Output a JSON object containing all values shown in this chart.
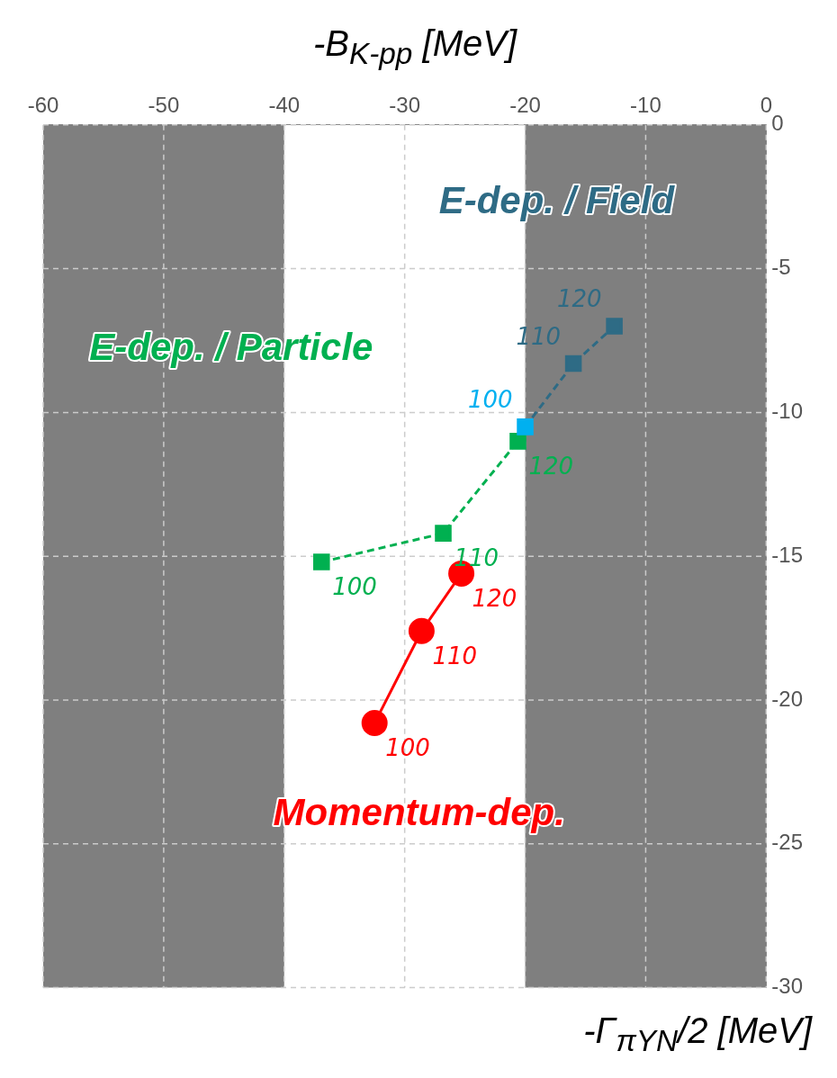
{
  "chart_data": {
    "type": "line",
    "xlabel": "-Γ$_{πYN}$/2 [MeV]",
    "ylabel": "-B$_{K-pp}$ [MeV]",
    "xlim": [
      -60,
      0
    ],
    "xticks": [
      -60,
      -50,
      -40,
      -30,
      -20,
      -10,
      0
    ],
    "ylim": [
      -30,
      0
    ],
    "yticks": [
      -30,
      -25,
      -20,
      -15,
      -10,
      -5,
      0
    ],
    "grid": true,
    "legend": false,
    "bands": [
      {
        "axis": "x",
        "from": -60,
        "to": -40,
        "color": "#7f7f7f"
      },
      {
        "axis": "x",
        "from": -20,
        "to": 0,
        "color": "#7f7f7f"
      }
    ],
    "series": [
      {
        "name": "E-dep. / Field",
        "color": "#2e6b85",
        "colors": [
          "#00b0f0",
          "#2e6b85",
          "#2e6b85"
        ],
        "marker": "square",
        "line_style": "dashed",
        "x": [
          -20,
          -16,
          -12.6
        ],
        "values": [
          -10.5,
          -8.3,
          -7.0
        ]
      },
      {
        "name": "E-dep. / Particle",
        "color": "#00b050",
        "colors": [
          "#00b050",
          "#00b050",
          "#00b050"
        ],
        "marker": "square",
        "line_style": "dashed",
        "x": [
          -36.9,
          -26.8,
          -20.6
        ],
        "values": [
          -15.2,
          -14.2,
          -11.0
        ]
      },
      {
        "name": "Momentum-dep.",
        "color": "#ff0000",
        "colors": [
          "#ff0000",
          "#ff0000",
          "#ff0000"
        ],
        "marker": "circle",
        "line_style": "solid",
        "x": [
          -32.5,
          -28.6,
          -25.3
        ],
        "values": [
          -20.8,
          -17.6,
          -15.6
        ]
      }
    ],
    "annotations": [
      {
        "text": "100",
        "x": -20,
        "y": -10.5
      },
      {
        "text": "110",
        "x": -16,
        "y": -8.3
      },
      {
        "text": "120",
        "x": -12.6,
        "y": -7.0
      },
      {
        "text": "100",
        "x": -36.9,
        "y": -15.2
      },
      {
        "text": "110",
        "x": -26.8,
        "y": -14.2
      },
      {
        "text": "120",
        "x": -20.6,
        "y": -11.0
      },
      {
        "text": "100",
        "x": -32.5,
        "y": -20.8
      },
      {
        "text": "110",
        "x": -28.6,
        "y": -17.6
      },
      {
        "text": "120",
        "x": -25.3,
        "y": -15.6
      }
    ]
  }
}
